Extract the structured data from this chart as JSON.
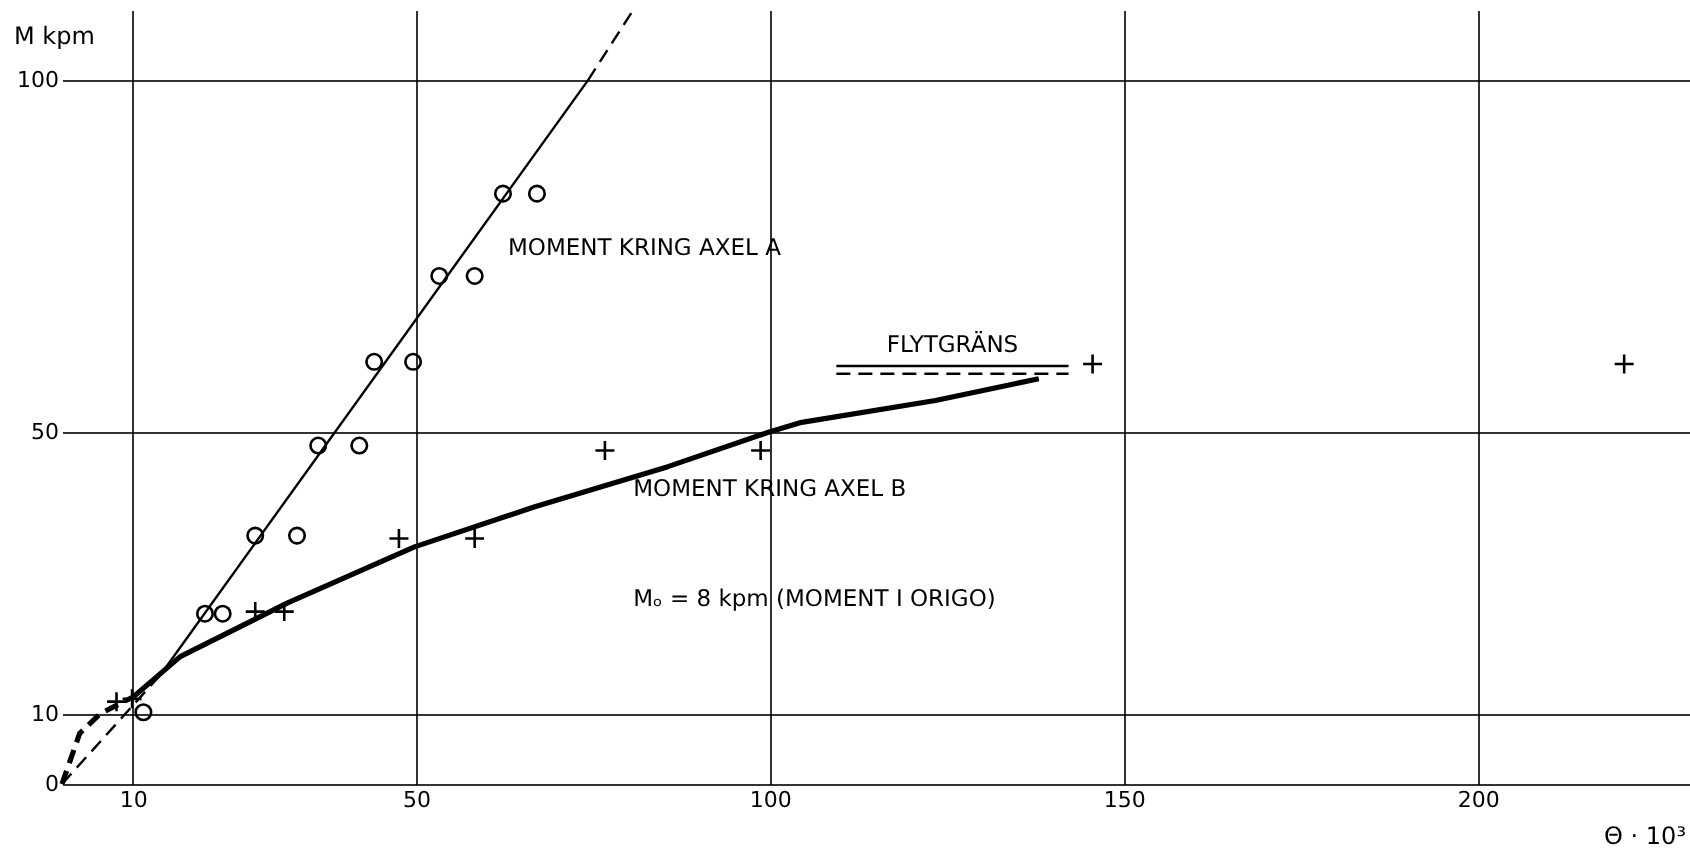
{
  "chart_data": {
    "type": "line",
    "xlabel": "Θ · 10³",
    "ylabel": "M  kpm",
    "xlim": [
      0,
      230
    ],
    "ylim": [
      0,
      110
    ],
    "xticks": [
      10,
      50,
      100,
      150,
      200
    ],
    "yticks": [
      0,
      10,
      50,
      100
    ],
    "grid": true,
    "annotations": [
      "Mₒ = 8 kpm (MOMENT I ORIGO)"
    ],
    "series": [
      {
        "type": "scatter",
        "marker": "circle",
        "color": "#000000",
        "x": [
          11.5,
          20.2,
          22.7,
          27.3,
          33.2,
          36.2,
          42.0,
          44.1,
          49.6,
          53.3,
          58.3,
          62.3,
          67.1
        ],
        "values": [
          10.2,
          24.2,
          24.2,
          35.3,
          35.3,
          48.1,
          48.1,
          60.0,
          60.0,
          72.2,
          72.2,
          83.9,
          83.9
        ]
      },
      {
        "type": "scatter",
        "marker": "cross",
        "color": "#000000",
        "x": [
          7.7,
          9.9,
          27.3,
          31.4,
          47.6,
          58.3,
          76.7,
          98.7,
          145.6,
          220.7
        ],
        "values": [
          11.7,
          12.1,
          24.5,
          24.5,
          34.9,
          34.9,
          47.4,
          47.4,
          59.7,
          59.7
        ]
      },
      {
        "line_style": "dashed",
        "color": "#000000",
        "x": [
          0,
          13.9
        ],
        "values": [
          0,
          15.5
        ]
      },
      {
        "line_style": "solid",
        "name": "MOMENT KRING AXEL A",
        "color": "#000000",
        "x": [
          13.9,
          74.3
        ],
        "values": [
          15.5,
          100
        ]
      },
      {
        "line_style": "dashed",
        "color": "#000000",
        "x": [
          74.3,
          80.7
        ],
        "values": [
          100,
          110
        ]
      },
      {
        "line_style": "dashed",
        "color": "#000000",
        "x": [
          0,
          2.5,
          5.4,
          10.1
        ],
        "values": [
          0,
          7.2,
          10.0,
          12.4
        ]
      },
      {
        "line_style": "solid",
        "name": "MOMENT KRING AXEL B",
        "color": "#000000",
        "x": [
          10.1,
          16.7,
          31.8,
          49.8,
          66.8,
          85.6,
          99.8,
          104.5,
          123.4,
          138.0
        ],
        "values": [
          12.4,
          18.1,
          25.7,
          33.7,
          39.4,
          45.1,
          50.0,
          51.4,
          54.5,
          57.6
        ]
      },
      {
        "line_style": "solid",
        "name": "FLYTGRÄNS",
        "color": "#000000",
        "x": [
          109.4,
          142.2
        ],
        "values": [
          59.4,
          59.4
        ]
      },
      {
        "line_style": "dashed",
        "color": "#000000",
        "x": [
          109.4,
          142.2
        ],
        "values": [
          58.3,
          58.3
        ]
      }
    ]
  }
}
